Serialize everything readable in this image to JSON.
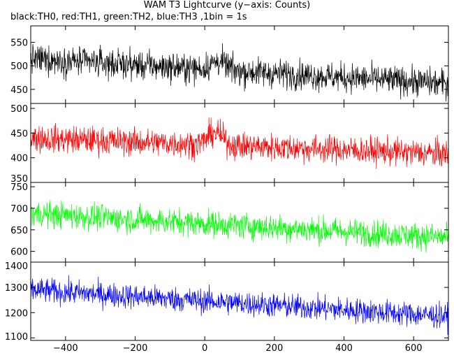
{
  "chart_data": {
    "type": "line",
    "title": "WAM T3 Lightcurve (y−axis: Counts)",
    "subtitle": "black:TH0, red:TH1, green:TH2, blue:TH3 ,1bin = 1s",
    "xlim": [
      -500,
      700
    ],
    "x_ticks": [
      -400,
      -200,
      0,
      200,
      400,
      600
    ],
    "x_tick_labels": [
      "−400",
      "−200",
      "0",
      "200",
      "400",
      "600"
    ],
    "panels": [
      {
        "name": "TH0",
        "color": "#000000",
        "ylim": [
          420,
          585
        ],
        "y_ticks": [
          450,
          500,
          550
        ],
        "mean_start": 515,
        "mean_end": 462,
        "noise": 22,
        "bump": {
          "center": 40,
          "width": 30,
          "amp": 18
        }
      },
      {
        "name": "TH1",
        "color": "#ff0000",
        "ylim": [
          350,
          510
        ],
        "y_ticks": [
          350,
          400,
          450,
          500
        ],
        "mean_start": 440,
        "mean_end": 408,
        "noise": 20,
        "bump": {
          "center": 30,
          "width": 30,
          "amp": 25
        }
      },
      {
        "name": "TH2",
        "color": "#00ff00",
        "ylim": [
          575,
          760
        ],
        "y_ticks": [
          600,
          650,
          700,
          750
        ],
        "mean_start": 688,
        "mean_end": 632,
        "noise": 22,
        "bump": {
          "center": 0,
          "width": 1,
          "amp": 0
        }
      },
      {
        "name": "TH3",
        "color": "#0000ff",
        "ylim": [
          1090,
          1400
        ],
        "y_ticks": [
          1100,
          1200,
          1300,
          1400
        ],
        "mean_start": 1290,
        "mean_end": 1185,
        "noise": 35,
        "bump": {
          "center": 0,
          "width": 1,
          "amp": 0
        }
      }
    ]
  }
}
